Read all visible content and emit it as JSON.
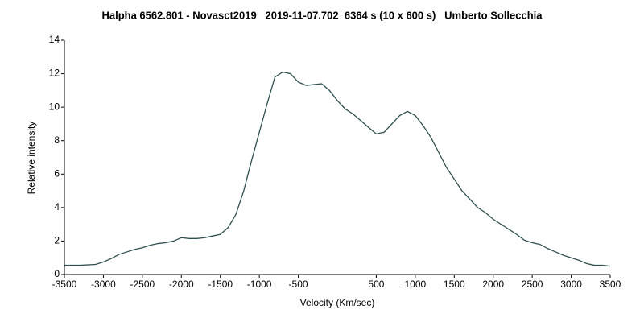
{
  "chart_data": {
    "type": "line",
    "title": "Halpha 6562.801 - Novasct2019   2019-11-07.702  6364 s (10 x 600 s)   Umberto Sollecchia",
    "x_label": "Velocity (Km/sec)",
    "y_label": "Relative intensity",
    "x": [
      -3500,
      -3300,
      -3100,
      -3000,
      -2900,
      -2800,
      -2700,
      -2600,
      -2500,
      -2400,
      -2300,
      -2200,
      -2100,
      -2000,
      -1900,
      -1800,
      -1700,
      -1600,
      -1500,
      -1400,
      -1300,
      -1200,
      -1100,
      -1000,
      -900,
      -800,
      -700,
      -600,
      -500,
      -400,
      -300,
      -200,
      -100,
      0,
      100,
      200,
      300,
      400,
      500,
      600,
      700,
      800,
      900,
      1000,
      1100,
      1200,
      1300,
      1400,
      1500,
      1600,
      1700,
      1800,
      1900,
      2000,
      2100,
      2200,
      2300,
      2400,
      2500,
      2600,
      2700,
      2800,
      2900,
      3000,
      3100,
      3200,
      3300,
      3400,
      3500
    ],
    "series": [
      {
        "color": "#2f4f4f",
        "values": [
          0.55,
          0.55,
          0.6,
          0.75,
          0.95,
          1.2,
          1.35,
          1.5,
          1.6,
          1.75,
          1.85,
          1.9,
          2.0,
          2.2,
          2.15,
          2.15,
          2.2,
          2.3,
          2.4,
          2.8,
          3.6,
          5.0,
          6.8,
          8.5,
          10.2,
          11.8,
          12.1,
          12.0,
          11.5,
          11.3,
          11.35,
          11.4,
          11.0,
          10.4,
          9.9,
          9.6,
          9.2,
          8.8,
          8.4,
          8.5,
          9.0,
          9.5,
          9.75,
          9.5,
          8.9,
          8.2,
          7.3,
          6.4,
          5.7,
          5.0,
          4.5,
          4.0,
          3.7,
          3.3,
          3.0,
          2.7,
          2.4,
          2.05,
          1.9,
          1.8,
          1.55,
          1.35,
          1.15,
          1.0,
          0.85,
          0.65,
          0.55,
          0.55,
          0.5
        ]
      }
    ],
    "xlim": [
      -3500,
      3500
    ],
    "xticks": [
      -3500,
      -3000,
      -2500,
      -2000,
      -1500,
      -1000,
      -500,
      500,
      1000,
      1500,
      2000,
      2500,
      3000,
      3500
    ],
    "ylim": [
      0,
      14
    ],
    "yticks": [
      0,
      2,
      4,
      6,
      8,
      10,
      12,
      14
    ],
    "grid": false
  }
}
